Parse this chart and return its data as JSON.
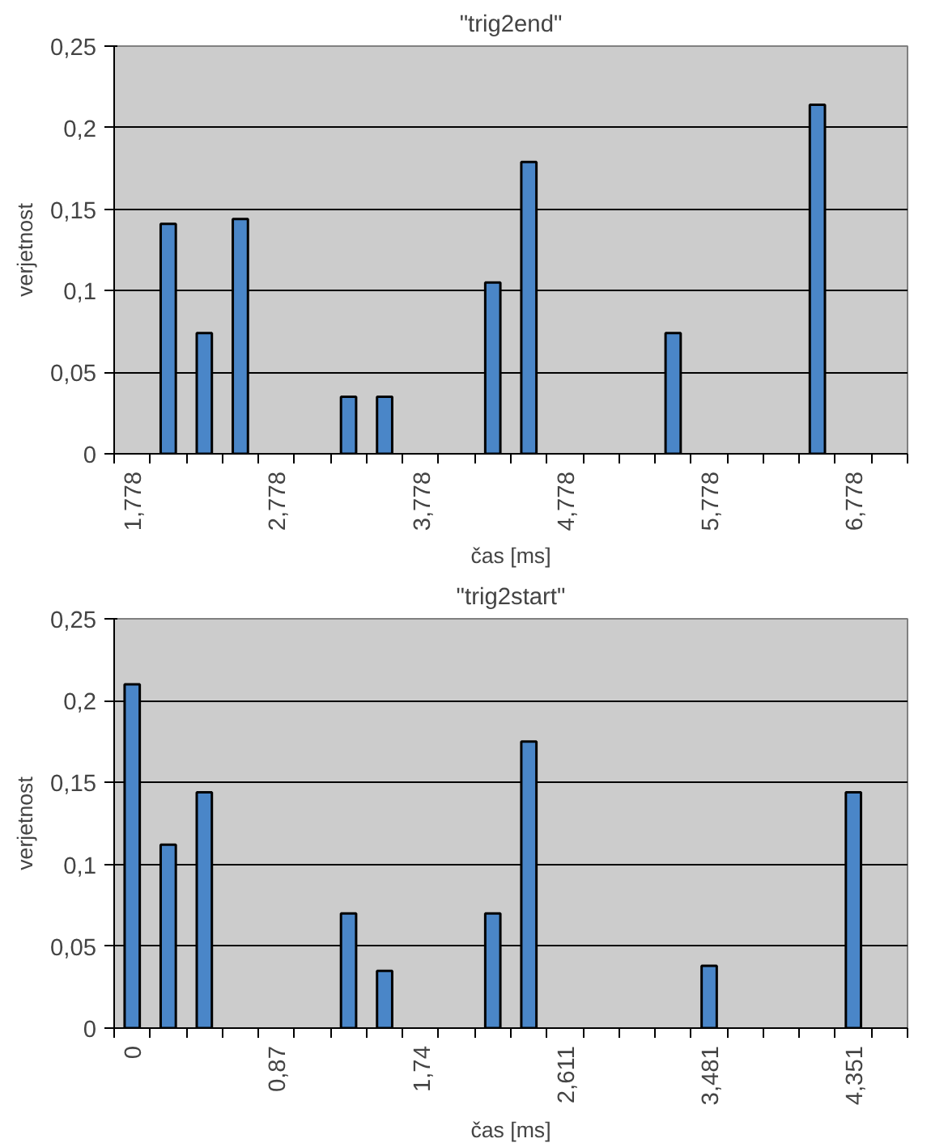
{
  "chart_data": [
    {
      "type": "bar",
      "title": "\"trig2end\"",
      "xlabel": "čas [ms]",
      "ylabel": "verjetnost",
      "categories": [
        "1,778",
        null,
        null,
        null,
        "2,778",
        null,
        null,
        null,
        "3,778",
        null,
        null,
        null,
        "4,778",
        null,
        null,
        null,
        "5,778",
        null,
        null,
        null,
        "6,778",
        null
      ],
      "series": [
        {
          "color": "#4a86c8",
          "values": [
            null,
            0.141,
            0.074,
            0.144,
            null,
            null,
            0.035,
            0.035,
            null,
            null,
            0.105,
            0.179,
            null,
            null,
            null,
            0.074,
            null,
            null,
            null,
            0.214,
            null,
            null
          ]
        }
      ],
      "ylim": [
        0,
        0.25
      ],
      "yticks": [
        0,
        {
          "value": 0.05,
          "label": "0,05"
        },
        {
          "value": 0.1,
          "label": "0,1"
        },
        {
          "value": 0.15,
          "label": "0,15"
        },
        {
          "value": 0.2,
          "label": "0,2"
        },
        {
          "value": 0.25,
          "label": "0,25"
        }
      ],
      "grid": "y"
    },
    {
      "type": "bar",
      "title": "\"trig2start\"",
      "xlabel": "čas [ms]",
      "ylabel": "verjetnost",
      "categories": [
        "0",
        null,
        null,
        null,
        "0,87",
        null,
        null,
        null,
        "1,74",
        null,
        null,
        null,
        "2,611",
        null,
        null,
        null,
        "3,481",
        null,
        null,
        null,
        "4,351",
        null
      ],
      "series": [
        {
          "color": "#4a86c8",
          "values": [
            0.21,
            0.112,
            0.144,
            null,
            null,
            null,
            0.07,
            0.035,
            null,
            null,
            0.07,
            0.175,
            null,
            null,
            null,
            null,
            0.038,
            null,
            null,
            null,
            0.144,
            null
          ]
        }
      ],
      "ylim": [
        0,
        0.25
      ],
      "yticks": [
        0,
        {
          "value": 0.05,
          "label": "0,05"
        },
        {
          "value": 0.1,
          "label": "0,1"
        },
        {
          "value": 0.15,
          "label": "0,15"
        },
        {
          "value": 0.2,
          "label": "0,2"
        },
        {
          "value": 0.25,
          "label": "0,25"
        }
      ],
      "grid": "y"
    }
  ]
}
